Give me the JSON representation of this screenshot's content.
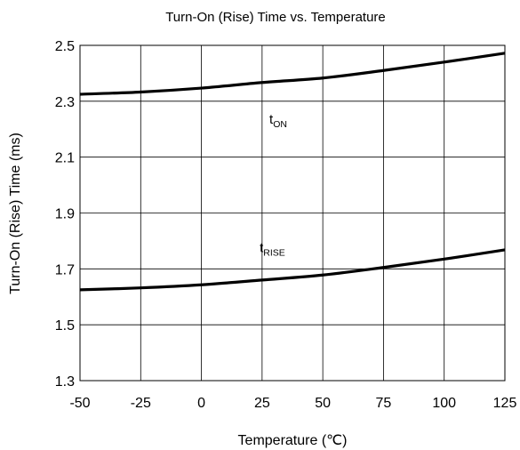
{
  "chart_data": {
    "type": "line",
    "title": "Turn-On (Rise) Time vs. Temperature",
    "xlabel": "Temperature (℃)",
    "ylabel": "Turn-On (Rise) Time (ms)",
    "xlim": [
      -50,
      125
    ],
    "ylim": [
      1.3,
      2.5
    ],
    "xticks": [
      "-50",
      "-25",
      "0",
      "25",
      "50",
      "75",
      "100",
      "125"
    ],
    "yticks": [
      "1.3",
      "1.5",
      "1.7",
      "1.9",
      "2.1",
      "2.3",
      "2.5"
    ],
    "grid": true,
    "x": [
      -50,
      -25,
      0,
      25,
      50,
      75,
      100,
      125
    ],
    "series": [
      {
        "name_main": "t",
        "name_sub": "ON",
        "color": "#000000",
        "values": [
          2.325,
          2.333,
          2.347,
          2.367,
          2.383,
          2.41,
          2.44,
          2.472
        ]
      },
      {
        "name_main": "t",
        "name_sub": "RISE",
        "color": "#000000",
        "values": [
          1.625,
          1.632,
          1.643,
          1.66,
          1.678,
          1.705,
          1.735,
          1.768
        ]
      }
    ]
  }
}
